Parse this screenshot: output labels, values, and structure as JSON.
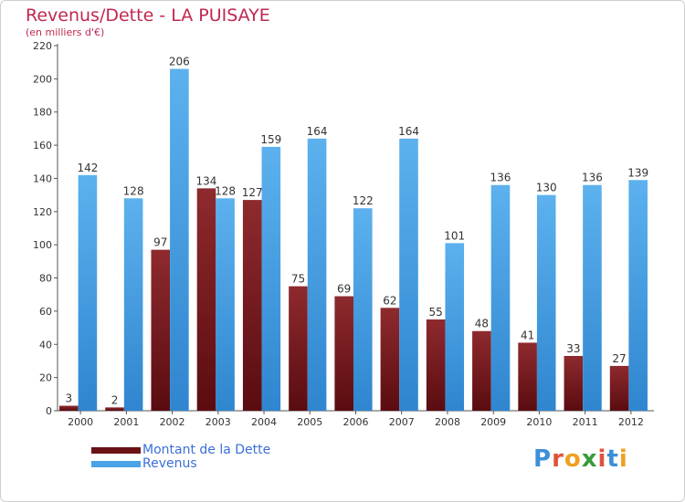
{
  "title": "Revenus/Dette - LA PUISAYE",
  "subtitle": "(en milliers d'€)",
  "legend": {
    "debt_label": "Montant de la Dette",
    "revenue_label": "Revenus"
  },
  "logo": {
    "text": "Proxiti",
    "letter_colors": [
      "#3b8fd6",
      "#e0533a",
      "#f0a020",
      "#3a9c3c",
      "#e0533a",
      "#3b8fd6",
      "#f0a020"
    ]
  },
  "colors": {
    "debt": "#7a1a1e",
    "revenue": "#4aa3e6",
    "accent": "#c0284f"
  },
  "chart_data": {
    "type": "bar",
    "title": "Revenus/Dette - LA PUISAYE",
    "ylabel": "(en milliers d'€)",
    "xlabel": "",
    "categories": [
      "2000",
      "2001",
      "2002",
      "2003",
      "2004",
      "2005",
      "2006",
      "2007",
      "2008",
      "2009",
      "2010",
      "2011",
      "2012"
    ],
    "series": [
      {
        "name": "Montant de la Dette",
        "values": [
          3,
          2,
          97,
          134,
          127,
          75,
          69,
          62,
          55,
          48,
          41,
          33,
          27
        ]
      },
      {
        "name": "Revenus",
        "values": [
          142,
          128,
          206,
          128,
          159,
          164,
          122,
          164,
          101,
          136,
          130,
          136,
          139
        ]
      }
    ],
    "ylim": [
      0,
      220
    ],
    "yticks": [
      0,
      20,
      40,
      60,
      80,
      100,
      120,
      140,
      160,
      180,
      200,
      220
    ],
    "grid": false,
    "legend_position": "bottom-left"
  }
}
